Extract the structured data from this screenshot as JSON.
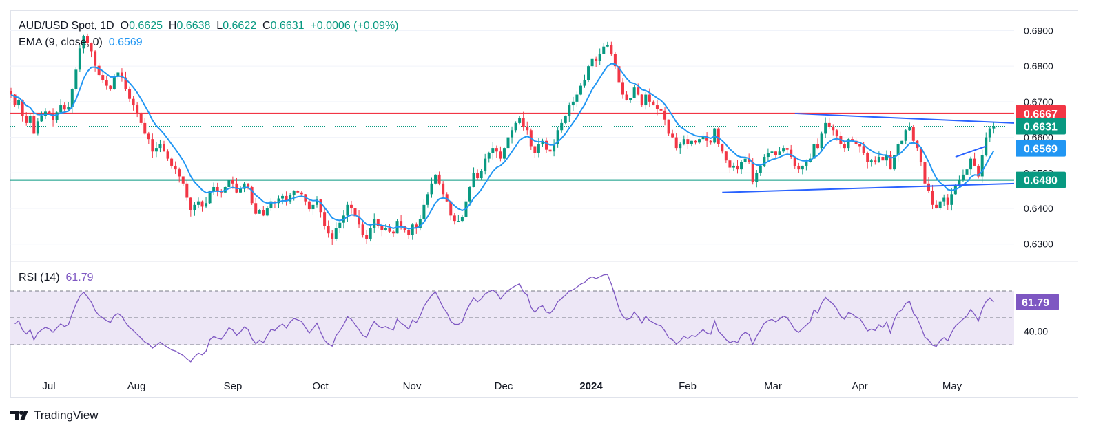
{
  "header": {
    "symbol": "AUD/USD Spot",
    "interval": "1D",
    "open_label": "O",
    "open": "0.6625",
    "high_label": "H",
    "high": "0.6638",
    "low_label": "L",
    "low": "0.6622",
    "close_label": "C",
    "close": "0.6631",
    "change": "+0.0006 (+0.09%)",
    "ema_label": "EMA (9, close, 0)",
    "ema_value": "0.6569",
    "rsi_label": "RSI (14)",
    "rsi_value": "61.79"
  },
  "branding": {
    "logo_text": "TradingView"
  },
  "colors": {
    "up": "#089981",
    "down": "#f23645",
    "ema": "#2196f3",
    "resistance": "#f23645",
    "support": "#089981",
    "trendline": "#2962ff",
    "rsi": "#7e57c2",
    "rsi_band": "#ede7f6"
  },
  "chart_data": [
    {
      "type": "candlestick",
      "title": "AUD/USD Spot, 1D",
      "y_axis": {
        "ticks": [
          "0.6300",
          "0.6400",
          "0.6500",
          "0.6600",
          "0.6700",
          "0.6800",
          "0.6900"
        ],
        "ylim": [
          0.6255,
          0.6955
        ],
        "position": "right"
      },
      "x_axis": {
        "ticks": [
          "Jul",
          "Aug",
          "Sep",
          "Oct",
          "Nov",
          "Dec",
          "2024",
          "Feb",
          "Mar",
          "Apr",
          "May"
        ]
      },
      "close_series": [
        0.672,
        0.669,
        0.6705,
        0.666,
        0.664,
        0.666,
        0.661,
        0.6645,
        0.666,
        0.6672,
        0.6665,
        0.6648,
        0.667,
        0.669,
        0.6678,
        0.6686,
        0.6735,
        0.679,
        0.685,
        0.6885,
        0.6865,
        0.6842,
        0.6801,
        0.6775,
        0.676,
        0.6745,
        0.6735,
        0.677,
        0.6782,
        0.6768,
        0.6735,
        0.6708,
        0.669,
        0.6665,
        0.664,
        0.661,
        0.6595,
        0.656,
        0.657,
        0.658,
        0.656,
        0.654,
        0.652,
        0.651,
        0.649,
        0.647,
        0.643,
        0.6395,
        0.641,
        0.642,
        0.6405,
        0.6415,
        0.645,
        0.646,
        0.645,
        0.6445,
        0.646,
        0.648,
        0.647,
        0.6445,
        0.6455,
        0.647,
        0.646,
        0.6415,
        0.6385,
        0.6395,
        0.638,
        0.64,
        0.642,
        0.6415,
        0.6428,
        0.6435,
        0.642,
        0.6438,
        0.645,
        0.6445,
        0.644,
        0.642,
        0.6398,
        0.641,
        0.6425,
        0.639,
        0.635,
        0.633,
        0.6315,
        0.6345,
        0.636,
        0.638,
        0.641,
        0.64,
        0.6378,
        0.6355,
        0.6325,
        0.6315,
        0.6345,
        0.637,
        0.635,
        0.634,
        0.6345,
        0.6335,
        0.633,
        0.6365,
        0.635,
        0.634,
        0.6325,
        0.6355,
        0.6345,
        0.637,
        0.641,
        0.644,
        0.647,
        0.6495,
        0.647,
        0.644,
        0.642,
        0.638,
        0.6365,
        0.6365,
        0.6375,
        0.642,
        0.646,
        0.65,
        0.6485,
        0.6505,
        0.654,
        0.6555,
        0.657,
        0.656,
        0.654,
        0.657,
        0.66,
        0.662,
        0.664,
        0.6655,
        0.663,
        0.662,
        0.6575,
        0.6555,
        0.658,
        0.659,
        0.6565,
        0.656,
        0.658,
        0.662,
        0.664,
        0.666,
        0.669,
        0.67,
        0.672,
        0.6745,
        0.676,
        0.68,
        0.682,
        0.6815,
        0.6835,
        0.6855,
        0.686,
        0.6835,
        0.68,
        0.6755,
        0.672,
        0.6705,
        0.671,
        0.674,
        0.672,
        0.669,
        0.672,
        0.67,
        0.669,
        0.668,
        0.6675,
        0.665,
        0.661,
        0.66,
        0.657,
        0.658,
        0.6595,
        0.658,
        0.659,
        0.6585,
        0.6595,
        0.6605,
        0.659,
        0.6585,
        0.6625,
        0.658,
        0.656,
        0.6535,
        0.6515,
        0.652,
        0.651,
        0.653,
        0.654,
        0.653,
        0.6475,
        0.65,
        0.652,
        0.6545,
        0.6555,
        0.656,
        0.655,
        0.656,
        0.657,
        0.6565,
        0.6545,
        0.652,
        0.651,
        0.652,
        0.653,
        0.654,
        0.658,
        0.657,
        0.661,
        0.664,
        0.663,
        0.662,
        0.6605,
        0.658,
        0.657,
        0.6595,
        0.659,
        0.658,
        0.6575,
        0.6555,
        0.653,
        0.6535,
        0.653,
        0.6545,
        0.6535,
        0.655,
        0.651,
        0.655,
        0.658,
        0.659,
        0.662,
        0.663,
        0.659,
        0.657,
        0.653,
        0.647,
        0.645,
        0.641,
        0.64,
        0.642,
        0.643,
        0.641,
        0.644,
        0.6465,
        0.648,
        0.6495,
        0.651,
        0.654,
        0.652,
        0.649,
        0.655,
        0.66,
        0.6625,
        0.6631
      ],
      "ema": {
        "name": "EMA (9, close, 0)",
        "last": 0.6569
      },
      "price_labels": [
        {
          "name": "resistance",
          "value": "0.6667"
        },
        {
          "name": "last",
          "value": "0.6631"
        },
        {
          "name": "ema",
          "value": "0.6569"
        },
        {
          "name": "support",
          "value": "0.6480"
        }
      ],
      "horizontal_lines": [
        {
          "name": "resistance",
          "value": 0.6667
        },
        {
          "name": "support",
          "value": 0.648
        }
      ],
      "trendlines": [
        {
          "name": "upper",
          "from": {
            "x": "Mar",
            "y": 0.6667
          },
          "to": {
            "x": "May",
            "y": 0.664
          }
        },
        {
          "name": "lower",
          "from": {
            "x": "Feb",
            "y": 0.6445
          },
          "to": {
            "x": "May",
            "y": 0.647
          }
        }
      ]
    },
    {
      "type": "line",
      "title": "RSI (14)",
      "y_axis": {
        "ticks": [
          "40.00"
        ],
        "ylim": [
          12,
          88
        ],
        "bands": [
          30,
          50,
          70
        ]
      },
      "last": 61.79,
      "label": "61.79"
    }
  ]
}
